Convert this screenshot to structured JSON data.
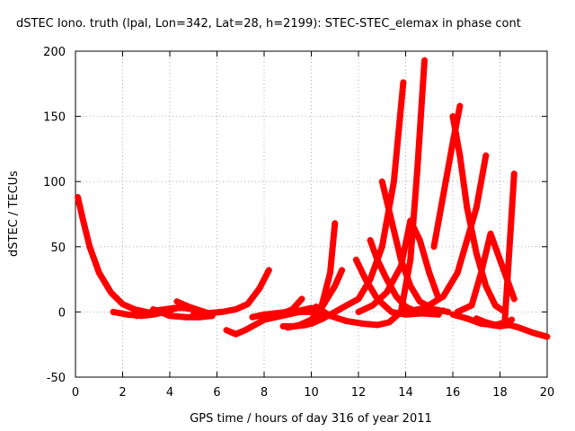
{
  "chart_data": {
    "type": "scatter",
    "title": "dSTEC Iono. truth (lpal, Lon=342, Lat=28, h=2199): STEC-STEC_elemax in phase cont",
    "xlabel": "GPS time / hours of day 316 of year 2011",
    "ylabel": "dSTEC  / TECUs",
    "xlim": [
      0,
      20
    ],
    "ylim": [
      -50,
      200
    ],
    "xticks": [
      "0",
      "2",
      "4",
      "6",
      "8",
      "10",
      "12",
      "14",
      "16",
      "18",
      "20"
    ],
    "yticks": [
      "-50",
      "0",
      "50",
      "100",
      "150",
      "200"
    ],
    "grid": true,
    "marker": "+",
    "color": "#ff0000",
    "series": [
      {
        "x": [
          0.1,
          0.3,
          0.6,
          1.0,
          1.5,
          2.0,
          2.5,
          3.0
        ],
        "y": [
          88,
          72,
          50,
          30,
          15,
          6,
          2,
          0
        ]
      },
      {
        "x": [
          1.6,
          2.2,
          2.8,
          3.3,
          3.8,
          4.3
        ],
        "y": [
          0,
          -2,
          -3,
          -2,
          0,
          3
        ]
      },
      {
        "x": [
          2.6,
          3.0,
          3.4,
          3.8,
          4.2,
          4.6,
          5.0
        ],
        "y": [
          -3,
          -1,
          1,
          2,
          3,
          3,
          2
        ]
      },
      {
        "x": [
          3.3,
          4.0,
          4.7,
          5.3,
          5.8
        ],
        "y": [
          2,
          -3,
          -4,
          -4,
          -3
        ]
      },
      {
        "x": [
          4.3,
          4.8,
          5.3,
          5.8
        ],
        "y": [
          8,
          4,
          1,
          -2
        ]
      },
      {
        "x": [
          5.0,
          5.6,
          6.2,
          6.8,
          7.3,
          7.8,
          8.2
        ],
        "y": [
          -2,
          -1,
          0,
          2,
          6,
          18,
          32
        ]
      },
      {
        "x": [
          6.4,
          6.8,
          7.2,
          7.6,
          8.0,
          8.4,
          8.8,
          9.2,
          9.6
        ],
        "y": [
          -14,
          -17,
          -14,
          -10,
          -6,
          -3,
          -1,
          2,
          10
        ]
      },
      {
        "x": [
          7.5,
          8.0,
          8.5,
          9.0,
          9.5,
          10.0
        ],
        "y": [
          -4,
          -2,
          -1,
          0,
          1,
          3
        ]
      },
      {
        "x": [
          8.0,
          8.5,
          9.0,
          9.5,
          10.0,
          10.4
        ],
        "y": [
          -6,
          -4,
          -2,
          0,
          0,
          -1
        ]
      },
      {
        "x": [
          8.8,
          9.3,
          9.8,
          10.3,
          10.8,
          11.0
        ],
        "y": [
          -11,
          -11,
          -10,
          -5,
          30,
          68
        ]
      },
      {
        "x": [
          9.0,
          9.5,
          10.0,
          10.5,
          11.0,
          11.3
        ],
        "y": [
          -12,
          -10,
          -6,
          5,
          20,
          32
        ]
      },
      {
        "x": [
          9.5,
          10.0,
          10.5,
          11.0,
          11.5,
          12.0,
          12.5,
          13.0,
          13.5,
          13.9
        ],
        "y": [
          -10,
          -9,
          -5,
          0,
          5,
          10,
          25,
          50,
          100,
          176
        ]
      },
      {
        "x": [
          10.2,
          10.8,
          11.5,
          12.2,
          12.8,
          13.3,
          13.8,
          14.2,
          14.5,
          14.8
        ],
        "y": [
          4,
          -3,
          -7,
          -9,
          -10,
          -8,
          0,
          40,
          110,
          193
        ]
      },
      {
        "x": [
          11.9,
          12.3,
          12.8,
          13.4,
          14.0,
          14.8,
          15.6
        ],
        "y": [
          40,
          25,
          10,
          0,
          -2,
          -1,
          1
        ]
      },
      {
        "x": [
          12.5,
          12.8,
          13.2,
          13.6,
          14.0,
          14.6,
          15.4
        ],
        "y": [
          55,
          40,
          25,
          12,
          4,
          -1,
          -2
        ]
      },
      {
        "x": [
          13.0,
          13.4,
          13.8,
          14.2,
          14.6,
          15.2,
          15.8
        ],
        "y": [
          100,
          70,
          40,
          20,
          8,
          2,
          0
        ]
      },
      {
        "x": [
          12.0,
          12.6,
          13.2,
          13.8,
          14.2,
          14.6,
          15.0,
          15.4
        ],
        "y": [
          0,
          5,
          15,
          35,
          70,
          55,
          30,
          10
        ]
      },
      {
        "x": [
          14.0,
          14.8,
          15.6,
          16.2,
          16.6,
          17.0,
          17.4
        ],
        "y": [
          0,
          3,
          12,
          30,
          55,
          80,
          120
        ]
      },
      {
        "x": [
          16.0,
          16.3,
          16.6,
          17.0,
          17.4,
          17.8,
          18.2
        ],
        "y": [
          150,
          120,
          80,
          45,
          20,
          5,
          0
        ]
      },
      {
        "x": [
          15.2,
          15.6,
          16.0,
          16.3
        ],
        "y": [
          50,
          90,
          130,
          158
        ]
      },
      {
        "x": [
          16.2,
          16.8,
          17.2,
          17.6,
          18.0,
          18.6
        ],
        "y": [
          0,
          5,
          30,
          60,
          40,
          10
        ]
      },
      {
        "x": [
          16.0,
          16.6,
          17.2,
          17.8,
          18.2,
          18.6
        ],
        "y": [
          -2,
          -5,
          -9,
          -10,
          -8,
          106
        ]
      },
      {
        "x": [
          17.6,
          18.0,
          18.4,
          18.8,
          19.4,
          20.0
        ],
        "y": [
          -10,
          -11,
          -10,
          -12,
          -16,
          -19
        ]
      },
      {
        "x": [
          17.0,
          17.4,
          17.8,
          18.2,
          18.5
        ],
        "y": [
          -5,
          -8,
          -10,
          -9,
          -6
        ]
      }
    ]
  }
}
